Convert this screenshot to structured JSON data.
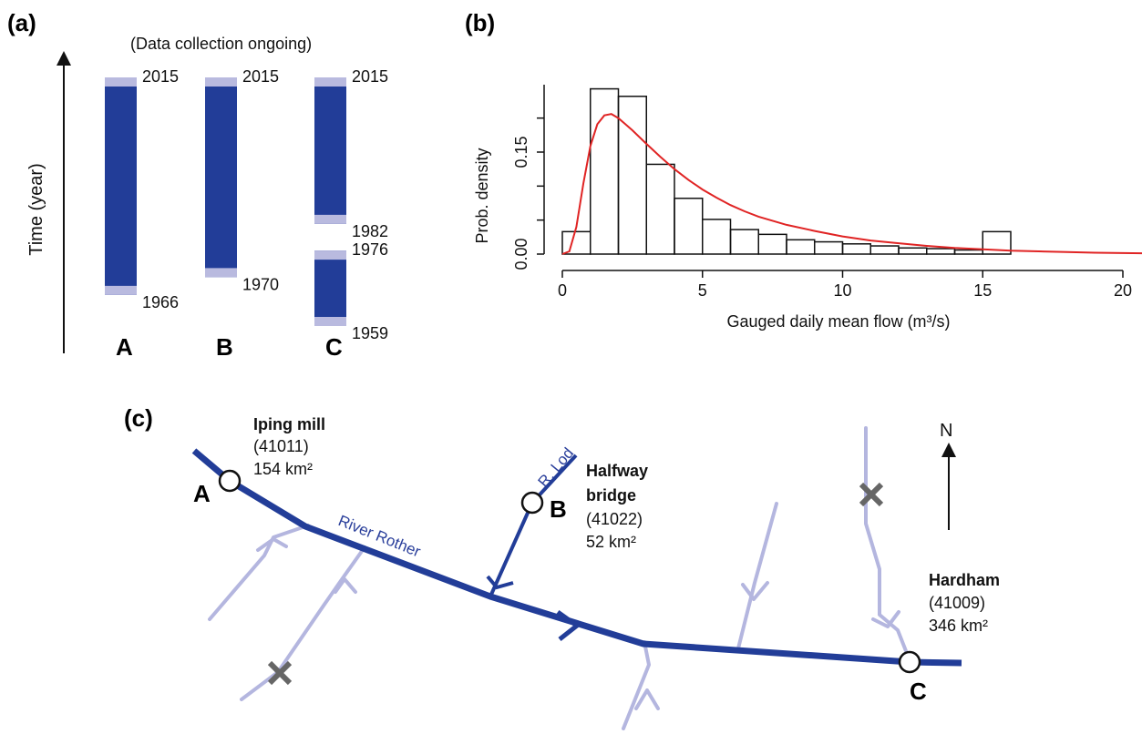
{
  "colors": {
    "dark_blue": "#223d98",
    "light_blue": "#b9badf",
    "trib": "#b4b6df",
    "red": "#e02424",
    "cross": "#666666"
  },
  "panel_a": {
    "label": "(a)",
    "note": "(Data collection ongoing)",
    "ylabel": "Time (year)",
    "year_range": [
      1955,
      2021
    ],
    "records": [
      {
        "site": "A",
        "segments": [
          {
            "start": "1966",
            "end": "2015"
          }
        ]
      },
      {
        "site": "B",
        "segments": [
          {
            "start": "1970",
            "end": "2015"
          }
        ]
      },
      {
        "site": "C",
        "segments": [
          {
            "start": "1982",
            "end": "2015"
          },
          {
            "start": "1959",
            "end": "1976"
          }
        ]
      }
    ]
  },
  "chart_data": {
    "type": "bar",
    "label": "(b)",
    "xlabel": "Gauged daily mean flow (m³/s)",
    "ylabel": "Prob. density",
    "xlim": [
      0,
      21
    ],
    "ylim": [
      0,
      0.265
    ],
    "xticks": [
      "0",
      "5",
      "10",
      "15",
      "20"
    ],
    "yticks": [
      "0.00",
      "0.15"
    ],
    "bin_width": 1,
    "bin_starts": [
      0,
      1,
      2,
      3,
      4,
      5,
      6,
      7,
      8,
      9,
      10,
      11,
      12,
      13,
      14,
      15
    ],
    "values": [
      0.033,
      0.243,
      0.232,
      0.132,
      0.082,
      0.051,
      0.036,
      0.029,
      0.021,
      0.018,
      0.015,
      0.012,
      0.009,
      0.008,
      0.006,
      0.033
    ],
    "fit_curve": {
      "x": [
        0,
        0.25,
        0.5,
        0.75,
        1,
        1.25,
        1.5,
        1.75,
        2,
        2.25,
        2.5,
        3,
        3.5,
        4,
        4.5,
        5,
        5.5,
        6,
        6.5,
        7,
        8,
        9,
        10,
        11,
        12,
        13,
        14,
        15,
        16,
        17,
        18,
        19,
        20,
        21
      ],
      "y": [
        0,
        0.004,
        0.04,
        0.104,
        0.159,
        0.191,
        0.204,
        0.206,
        0.2,
        0.191,
        0.182,
        0.162,
        0.143,
        0.125,
        0.109,
        0.095,
        0.083,
        0.072,
        0.063,
        0.055,
        0.043,
        0.034,
        0.026,
        0.02,
        0.016,
        0.012,
        0.009,
        0.007,
        0.005,
        0.004,
        0.003,
        0.002,
        0.0015,
        0.001
      ]
    }
  },
  "panel_c": {
    "label": "(c)",
    "north": "N",
    "main_river_label": "River Rother",
    "tributary_label": "R. Lod",
    "sites": [
      {
        "letter": "A",
        "name": [
          "Iping mill"
        ],
        "id": "(41011)",
        "area": "154 km²"
      },
      {
        "letter": "B",
        "name": [
          "Halfway",
          "bridge"
        ],
        "id": "(41022)",
        "area": "52 km²"
      },
      {
        "letter": "C",
        "name": [
          "Hardham"
        ],
        "id": "(41009)",
        "area": "346 km²"
      }
    ]
  }
}
